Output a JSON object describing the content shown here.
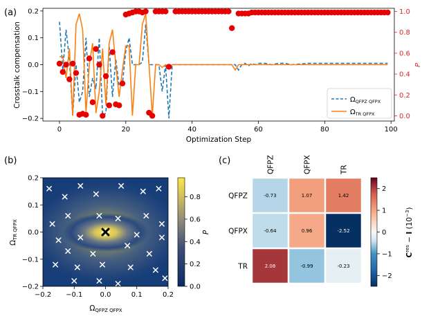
{
  "chart_data": [
    {
      "panel": "(a)",
      "type": "line",
      "xlabel": "Optimization Step",
      "ylabel": "Crosstalk compensation",
      "ylabel_right": "P",
      "xlim": [
        -5,
        101
      ],
      "ylim": [
        -0.21,
        0.21
      ],
      "ylim_right": [
        -0.05,
        1.03
      ],
      "xticks": [
        "0",
        "20",
        "40",
        "60",
        "80",
        "100"
      ],
      "yticks": [
        "−0.2",
        "−0.1",
        "0.0",
        "0.1",
        "0.2"
      ],
      "yticks_right": [
        "0.0",
        "0.2",
        "0.4",
        "0.6",
        "0.8",
        "1.0"
      ],
      "legend": [
        "Ω_QFPZ QFPX",
        "Ω_TR QFPX"
      ],
      "legend_labels": {
        "omega1": "Ω",
        "sub1": "QFPZ QFPX",
        "omega2": "Ω",
        "sub2": "TR QFPX"
      },
      "series": [
        {
          "name": "Ω_QFPZ QFPX",
          "style": "dashed",
          "color": "#1f77b4",
          "x": [
            0,
            1,
            2,
            3,
            4,
            5,
            6,
            7,
            8,
            9,
            10,
            11,
            12,
            13,
            14,
            15,
            16,
            17,
            18,
            19,
            20,
            21,
            22,
            23,
            24,
            25,
            26,
            27,
            28,
            29,
            30,
            31,
            32,
            33,
            34,
            40,
            50,
            52,
            53,
            54,
            55,
            56,
            57,
            58,
            59,
            60,
            62,
            64,
            66,
            68,
            70,
            75,
            80,
            85,
            90,
            95,
            99
          ],
          "values": [
            0.16,
            -0.02,
            0.13,
            0.02,
            -0.19,
            0.0,
            -0.14,
            -0.1,
            0.1,
            -0.12,
            -0.05,
            -0.09,
            0.1,
            -0.19,
            -0.18,
            0.07,
            -0.12,
            0.02,
            -0.08,
            -0.07,
            0.05,
            0.1,
            0.0,
            0.0,
            0.0,
            0.01,
            0.15,
            0.0,
            0.0,
            0.0,
            0.0,
            -0.1,
            0.0,
            -0.2,
            0.0,
            0.0,
            0.0,
            0.0,
            0.0,
            -0.02,
            0.0,
            0.005,
            -0.005,
            0.005,
            0.0,
            0.005,
            0.005,
            0.0,
            0.005,
            0.005,
            0.0,
            0.005,
            0.005,
            0.005,
            0.005,
            0.005,
            0.005
          ]
        },
        {
          "name": "Ω_TR QFPX",
          "style": "solid",
          "color": "#ff7f0e",
          "x": [
            0,
            1,
            2,
            3,
            4,
            5,
            6,
            7,
            8,
            9,
            10,
            11,
            12,
            13,
            14,
            15,
            16,
            17,
            18,
            19,
            20,
            21,
            22,
            23,
            24,
            25,
            26,
            27,
            28,
            29,
            30,
            31,
            32,
            33,
            34,
            40,
            50,
            52,
            53,
            54,
            55,
            56,
            60,
            70,
            80,
            90,
            99
          ],
          "values": [
            0.03,
            0.03,
            -0.05,
            0.06,
            -0.19,
            0.15,
            0.19,
            0.13,
            -0.18,
            0.0,
            0.08,
            -0.18,
            -0.1,
            0.06,
            -0.15,
            0.08,
            0.13,
            0.0,
            -0.12,
            -0.02,
            0.07,
            0.07,
            -0.19,
            0.0,
            0.0,
            0.15,
            0.19,
            0.0,
            -0.19,
            0.0,
            0.0,
            -0.01,
            0.0,
            -0.01,
            0.0,
            0.0,
            0.0,
            0.0,
            -0.02,
            0.0,
            0.0,
            0.0,
            0.0,
            0.0,
            0.0,
            0.0,
            0.0
          ]
        },
        {
          "name": "P",
          "type": "scatter",
          "axis": "right",
          "color": "#e60000",
          "x": [
            0,
            1,
            2,
            3,
            4,
            5,
            6,
            7,
            8,
            9,
            10,
            11,
            12,
            13,
            14,
            15,
            16,
            17,
            18,
            19,
            20,
            21,
            22,
            23,
            24,
            25,
            26,
            27,
            28,
            29,
            30,
            31,
            32,
            33,
            35,
            36,
            37,
            38,
            39,
            40,
            41,
            42,
            43,
            44,
            45,
            46,
            47,
            48,
            49,
            50,
            51,
            52,
            54,
            55,
            56,
            57,
            58,
            59,
            60,
            61,
            62,
            63,
            64,
            65,
            66,
            67,
            68,
            69,
            70,
            71,
            72,
            73,
            74,
            75,
            76,
            77,
            78,
            79,
            80,
            81,
            82,
            83,
            84,
            85,
            86,
            87,
            88,
            89,
            90,
            91,
            92,
            93,
            94,
            95,
            96,
            97,
            98,
            99
          ],
          "values": [
            0.5,
            0.42,
            0.49,
            0.35,
            0.5,
            0.41,
            0.01,
            0.02,
            0.01,
            0.55,
            0.13,
            0.64,
            0.49,
            0.0,
            0.38,
            0.1,
            0.61,
            0.11,
            0.1,
            0.31,
            0.97,
            0.98,
            0.99,
            1.0,
            1.0,
            0.99,
            1.0,
            0.03,
            0.0,
            1.0,
            1.0,
            1.0,
            1.0,
            0.47,
            1.0,
            1.0,
            1.0,
            1.0,
            1.0,
            1.0,
            1.0,
            1.0,
            1.0,
            1.0,
            1.0,
            1.0,
            1.0,
            1.0,
            1.0,
            1.0,
            1.0,
            0.84,
            0.98,
            0.98,
            0.98,
            0.98,
            0.99,
            0.99,
            0.99,
            0.99,
            0.99,
            0.99,
            0.99,
            0.99,
            0.99,
            0.99,
            0.99,
            0.99,
            0.99,
            0.99,
            0.99,
            0.99,
            0.99,
            0.99,
            0.99,
            0.99,
            0.99,
            0.99,
            0.99,
            0.99,
            0.99,
            0.99,
            0.99,
            0.99,
            0.99,
            0.99,
            0.99,
            0.99,
            0.99,
            0.99,
            0.99,
            0.99,
            0.99,
            0.99,
            0.99,
            0.99,
            0.99,
            0.99
          ]
        }
      ]
    },
    {
      "panel": "(b)",
      "type": "heatmap",
      "xlabel": "Ω",
      "xlabel_sub": "QFPZ QFPX",
      "ylabel": "Ω",
      "ylabel_sub": "TR QFPX",
      "colorbar_label": "P",
      "xlim": [
        -0.2,
        0.2
      ],
      "ylim": [
        -0.2,
        0.2
      ],
      "xticks": [
        "−0.2",
        "−0.1",
        "0.0",
        "0.1",
        "0.2"
      ],
      "yticks": [
        "−0.2",
        "−0.1",
        "0.0",
        "0.1",
        "0.2"
      ],
      "colorbar_ticks": [
        "0.0",
        "0.2",
        "0.4",
        "0.6",
        "0.8"
      ],
      "samples": [
        [
          -0.18,
          0.16
        ],
        [
          -0.13,
          0.13
        ],
        [
          -0.08,
          0.17
        ],
        [
          -0.03,
          0.14
        ],
        [
          0.05,
          0.17
        ],
        [
          0.12,
          0.15
        ],
        [
          0.17,
          0.16
        ],
        [
          -0.12,
          0.06
        ],
        [
          -0.17,
          0.03
        ],
        [
          -0.02,
          0.06
        ],
        [
          0.04,
          0.05
        ],
        [
          0.13,
          0.06
        ],
        [
          0.18,
          0.03
        ],
        [
          -0.15,
          -0.03
        ],
        [
          -0.08,
          -0.02
        ],
        [
          0.1,
          -0.01
        ],
        [
          0.18,
          -0.02
        ],
        [
          -0.12,
          -0.07
        ],
        [
          -0.04,
          -0.08
        ],
        [
          0.07,
          -0.05
        ],
        [
          0.14,
          -0.08
        ],
        [
          -0.16,
          -0.12
        ],
        [
          -0.09,
          -0.13
        ],
        [
          -0.01,
          -0.12
        ],
        [
          0.08,
          -0.13
        ],
        [
          0.16,
          -0.14
        ],
        [
          -0.02,
          -0.18
        ],
        [
          0.04,
          -0.19
        ],
        [
          0.19,
          -0.17
        ],
        [
          -0.1,
          -0.18
        ],
        [
          0.0,
          0.0
        ],
        [
          0.005,
          -0.005
        ],
        [
          -0.005,
          0.005
        ]
      ],
      "best": [
        0.0,
        0.0
      ]
    },
    {
      "panel": "(c)",
      "type": "heatmap",
      "columns": [
        "QFPZ",
        "QFPX",
        "TR"
      ],
      "rows": [
        "QFPZ",
        "QFPX",
        "TR"
      ],
      "values": [
        [
          -0.73,
          1.07,
          1.42
        ],
        [
          -0.64,
          0.96,
          -2.52
        ],
        [
          2.08,
          -0.99,
          -0.23
        ]
      ],
      "colorbar_label": "C^res − I (10^−3)",
      "colorbar_label_parts": {
        "c": "C",
        "res": "res",
        "mid": " − ",
        "i": "I",
        "open": " (10",
        "exp": "−3",
        "close": ")"
      },
      "colorbar_range": [
        -2.5,
        2.5
      ],
      "colorbar_ticks": [
        "2",
        "1",
        "0",
        "−1",
        "−2"
      ]
    }
  ],
  "labels": {
    "a": "(a)",
    "b": "(b)",
    "c": "(c)"
  }
}
